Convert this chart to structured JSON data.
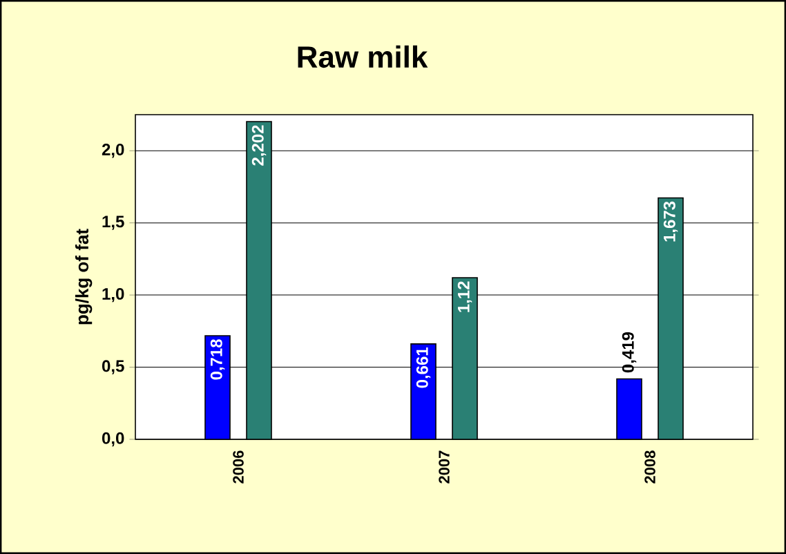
{
  "chart_data": {
    "type": "bar",
    "title": "Raw milk",
    "ylabel": "pg/kg of fat",
    "categories": [
      "2006",
      "2007",
      "2008"
    ],
    "series": [
      {
        "color": "#0000ff",
        "values": [
          0.718,
          0.661,
          0.419
        ],
        "value_labels": [
          "0,718",
          "0,661",
          "0,419"
        ]
      },
      {
        "color": "#2a8074",
        "values": [
          2.202,
          1.12,
          1.673
        ],
        "value_labels": [
          "2,202",
          "1,12",
          "1,673"
        ]
      }
    ],
    "ylim": [
      0,
      2.25
    ],
    "yticks": [
      {
        "value": 0,
        "label": "0,0"
      },
      {
        "value": 0.5,
        "label": "0,5"
      },
      {
        "value": 1,
        "label": "1,0"
      },
      {
        "value": 1.5,
        "label": "1,5"
      },
      {
        "value": 2,
        "label": "2,0"
      }
    ],
    "grid": "y"
  }
}
